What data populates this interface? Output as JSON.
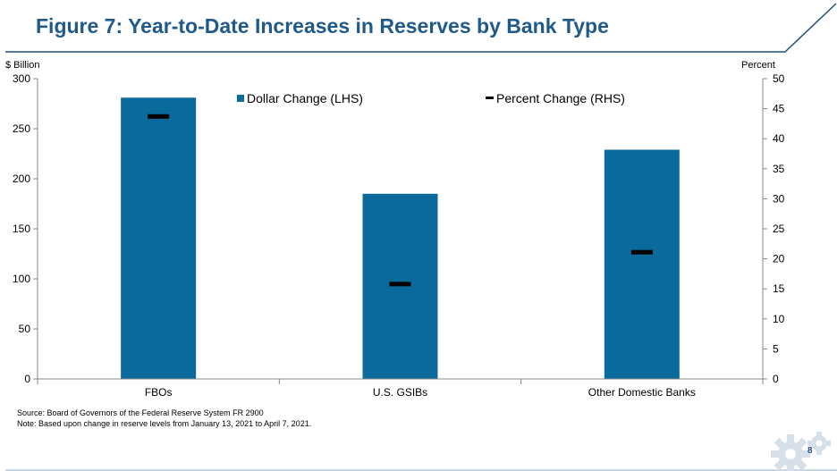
{
  "slide": {
    "title": "Figure 7: Year-to-Date Increases in Reserves by Bank Type",
    "source": "Source: Board of Governors of the Federal Reserve System FR 2900",
    "note": "Note: Based upon change in reserve levels from January 13, 2021 to April 7, 2021.",
    "page_number": "8",
    "accent_color": "#1f5a8a"
  },
  "chart_data": {
    "type": "bar",
    "categories": [
      "FBOs",
      "U.S. GSIBs",
      "Other Domestic Banks"
    ],
    "series": [
      {
        "name": "Dollar Change (LHS)",
        "axis": "left",
        "mark": "bar",
        "color": "#0a6a9c",
        "values": [
          281,
          185,
          229
        ]
      },
      {
        "name": "Percent Change (RHS)",
        "axis": "right",
        "mark": "dash",
        "color": "#000000",
        "values": [
          43.7,
          15.8,
          21.1
        ]
      }
    ],
    "y_left": {
      "label": "$ Billion",
      "range": [
        0,
        300
      ],
      "ticks": [
        0,
        50,
        100,
        150,
        200,
        250,
        300
      ]
    },
    "y_right": {
      "label": "Percent",
      "range": [
        0,
        50
      ],
      "ticks": [
        0,
        5,
        10,
        15,
        20,
        25,
        30,
        35,
        40,
        45,
        50
      ]
    },
    "legend_position": "top-center",
    "grid": false
  }
}
